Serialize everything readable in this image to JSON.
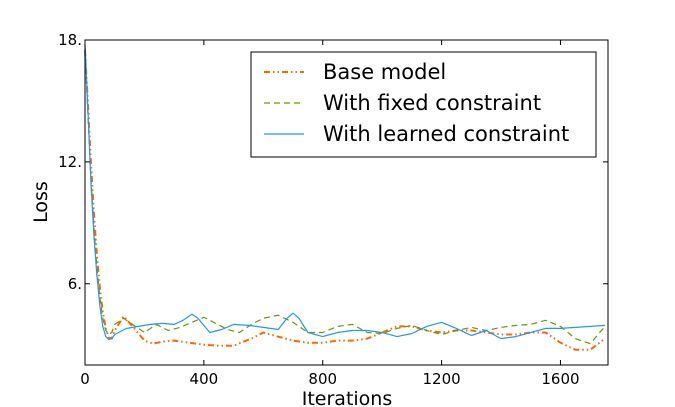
{
  "chart_data": {
    "type": "line",
    "xlabel": "Iterations",
    "ylabel": "Loss",
    "xlim": [
      0,
      1760
    ],
    "ylim": [
      2,
      18
    ],
    "xticks": [
      0,
      400,
      800,
      1200,
      1600
    ],
    "yticks": [
      6,
      12,
      18
    ],
    "xtick_labels": [
      "0",
      "400",
      "800",
      "1200",
      "1600"
    ],
    "ytick_labels": [
      "6.",
      "12.",
      "18."
    ],
    "legend_position": "top-right",
    "grid": false,
    "series": [
      {
        "name": "Base model",
        "color": "#ff6600",
        "style": "dash-dot-dot",
        "x": [
          0,
          10,
          20,
          30,
          40,
          50,
          60,
          70,
          80,
          90,
          100,
          130,
          160,
          200,
          230,
          260,
          300,
          350,
          400,
          450,
          500,
          560,
          600,
          650,
          700,
          750,
          800,
          850,
          900,
          950,
          1000,
          1050,
          1100,
          1150,
          1200,
          1250,
          1300,
          1350,
          1400,
          1450,
          1500,
          1550,
          1600,
          1650,
          1700,
          1750
        ],
        "y": [
          17.5,
          14.8,
          12.0,
          9.5,
          7.4,
          5.8,
          4.6,
          3.8,
          3.35,
          3.3,
          3.7,
          4.4,
          3.9,
          3.2,
          3.05,
          3.15,
          3.2,
          3.1,
          3.0,
          2.95,
          2.95,
          3.3,
          3.6,
          3.4,
          3.2,
          3.1,
          3.1,
          3.2,
          3.2,
          3.3,
          3.6,
          3.9,
          3.9,
          3.7,
          3.6,
          3.7,
          3.7,
          3.6,
          3.5,
          3.5,
          3.6,
          3.6,
          3.1,
          2.75,
          2.75,
          3.3
        ]
      },
      {
        "name": "With fixed constraint",
        "color": "#669900",
        "style": "dashed",
        "x": [
          0,
          10,
          20,
          30,
          40,
          50,
          60,
          70,
          80,
          90,
          100,
          130,
          160,
          200,
          240,
          280,
          320,
          360,
          400,
          440,
          480,
          520,
          560,
          600,
          650,
          700,
          750,
          800,
          850,
          900,
          950,
          1000,
          1050,
          1100,
          1150,
          1200,
          1250,
          1300,
          1350,
          1400,
          1450,
          1500,
          1550,
          1600,
          1650,
          1700,
          1750
        ],
        "y": [
          17.6,
          14.2,
          11.2,
          8.8,
          6.8,
          5.3,
          4.3,
          3.7,
          3.5,
          3.6,
          4.0,
          4.3,
          4.0,
          3.6,
          4.0,
          3.7,
          3.85,
          4.1,
          4.35,
          4.05,
          3.75,
          3.6,
          4.0,
          4.3,
          4.45,
          4.1,
          3.6,
          3.6,
          3.9,
          4.0,
          3.6,
          3.55,
          3.8,
          3.95,
          3.7,
          3.5,
          3.7,
          3.85,
          3.7,
          3.85,
          3.95,
          4.0,
          4.2,
          3.9,
          3.3,
          3.05,
          3.9
        ]
      },
      {
        "name": "With learned constraint",
        "color": "#2299ee",
        "style": "solid",
        "x": [
          0,
          10,
          20,
          30,
          40,
          50,
          60,
          70,
          80,
          90,
          100,
          140,
          180,
          220,
          260,
          300,
          330,
          360,
          380,
          420,
          460,
          500,
          550,
          600,
          650,
          680,
          700,
          720,
          750,
          800,
          850,
          900,
          950,
          1000,
          1050,
          1100,
          1150,
          1200,
          1250,
          1300,
          1350,
          1400,
          1450,
          1500,
          1550,
          1600,
          1650,
          1700,
          1750
        ],
        "y": [
          17.8,
          14.5,
          11.0,
          8.4,
          6.4,
          4.9,
          3.9,
          3.4,
          3.25,
          3.3,
          3.5,
          3.8,
          3.9,
          4.0,
          4.05,
          4.0,
          4.2,
          4.5,
          4.3,
          3.6,
          3.75,
          4.0,
          3.95,
          3.85,
          3.75,
          4.3,
          4.55,
          4.3,
          3.6,
          3.4,
          3.6,
          3.7,
          3.7,
          3.6,
          3.4,
          3.55,
          3.9,
          4.1,
          3.8,
          3.45,
          3.7,
          3.3,
          3.4,
          3.6,
          3.8,
          3.8,
          3.85,
          3.9,
          3.95
        ]
      }
    ]
  }
}
